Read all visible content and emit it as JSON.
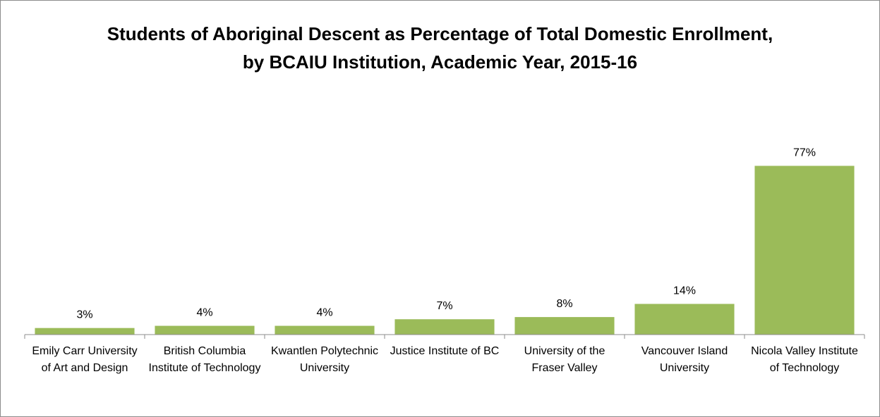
{
  "chart_data": {
    "type": "bar",
    "title": "Students of Aboriginal Descent as Percentage of Total Domestic Enrollment, by BCAIU Institution, Academic Year, 2015-16",
    "categories": [
      "Emily Carr University of Art and Design",
      "British Columbia Institute of Technology",
      "Kwantlen Polytechnic University",
      "Justice Institute of BC",
      "University of the Fraser Valley",
      "Vancouver Island University",
      "Nicola Valley Institute of Technology"
    ],
    "values": [
      3,
      4,
      4,
      7,
      8,
      14,
      77
    ],
    "value_labels": [
      "3%",
      "4%",
      "4%",
      "7%",
      "8%",
      "14%",
      "77%"
    ],
    "color": "#9bbb59",
    "ylim": [
      0,
      90
    ]
  }
}
